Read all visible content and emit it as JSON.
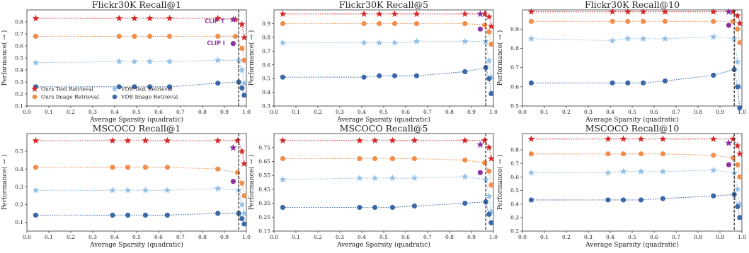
{
  "colors": {
    "ours_text": "#d62728",
    "ours_image": "#f28e4c",
    "vdr_text": "#92c0e6",
    "vdr_image": "#3b68a8",
    "clip": "#8e2fa3",
    "vline": "#222222"
  },
  "legend": {
    "entries": [
      {
        "label": "Ours Text Retrieval",
        "marker": "star",
        "color_key": "ours_text"
      },
      {
        "label": "VDR Text Retrieval",
        "marker": "star",
        "color_key": "vdr_text"
      },
      {
        "label": "Ours Image Retrieval",
        "marker": "circle",
        "color_key": "ours_image"
      },
      {
        "label": "VDR Image Retrieval",
        "marker": "circle",
        "color_key": "vdr_image"
      }
    ],
    "placement": "lower-left (first panel only)"
  },
  "chart_data": [
    {
      "type": "line",
      "title": "Flickr30K Recall@1",
      "xlabel": "Average Sparsity (quadratic)",
      "ylabel": "Performance( → )",
      "xlim": [
        0.0,
        1.0
      ],
      "ylim": [
        0.1,
        0.9
      ],
      "xticks": [
        "0.0",
        "0.1",
        "0.2",
        "0.3",
        "0.4",
        "0.5",
        "0.6",
        "0.7",
        "0.8",
        "0.9",
        "1.0"
      ],
      "yticks": [
        "0.1",
        "0.2",
        "0.3",
        "0.4",
        "0.5",
        "0.6",
        "0.7",
        "0.8"
      ],
      "vline": 0.965,
      "series": [
        {
          "key": "ours_text",
          "x": [
            0.04,
            0.42,
            0.49,
            0.56,
            0.65,
            0.87,
            0.95,
            0.98,
            0.99
          ],
          "y": [
            0.83,
            0.83,
            0.83,
            0.83,
            0.83,
            0.83,
            0.82,
            0.78,
            0.67
          ]
        },
        {
          "key": "ours_image",
          "x": [
            0.04,
            0.42,
            0.49,
            0.56,
            0.65,
            0.87,
            0.95,
            0.98,
            0.99
          ],
          "y": [
            0.68,
            0.68,
            0.68,
            0.68,
            0.68,
            0.68,
            0.68,
            0.58,
            0.48
          ]
        },
        {
          "key": "vdr_text",
          "x": [
            0.04,
            0.42,
            0.49,
            0.56,
            0.65,
            0.87,
            0.965,
            0.98,
            0.99
          ],
          "y": [
            0.46,
            0.47,
            0.47,
            0.47,
            0.47,
            0.48,
            0.48,
            0.4,
            0.29
          ]
        },
        {
          "key": "vdr_image",
          "x": [
            0.04,
            0.42,
            0.49,
            0.56,
            0.65,
            0.87,
            0.965,
            0.98,
            0.99
          ],
          "y": [
            0.26,
            0.26,
            0.26,
            0.26,
            0.26,
            0.29,
            0.3,
            0.25,
            0.19
          ]
        }
      ],
      "clip": {
        "text": {
          "x": 0.94,
          "y": 0.82
        },
        "image": {
          "x": 0.94,
          "y": 0.62
        }
      },
      "annotations": [
        {
          "text": "CLIP T",
          "x": 0.81,
          "y": 0.79
        },
        {
          "text": "CLIP I",
          "x": 0.82,
          "y": 0.61
        }
      ],
      "legend": true
    },
    {
      "type": "line",
      "title": "Flickr30K Recall@5",
      "xlabel": "Average Sparsity (quadratic)",
      "ylabel": "Performance( → )",
      "xlim": [
        0.0,
        1.0
      ],
      "ylim": [
        0.3,
        1.0
      ],
      "xticks": [
        "0.0",
        "0.1",
        "0.2",
        "0.3",
        "0.4",
        "0.5",
        "0.6",
        "0.7",
        "0.8",
        "0.9",
        "1.0"
      ],
      "yticks": [
        "0.3",
        "0.4",
        "0.5",
        "0.6",
        "0.7",
        "0.8",
        "0.9"
      ],
      "vline": 0.965,
      "series": [
        {
          "key": "ours_text",
          "x": [
            0.04,
            0.41,
            0.48,
            0.55,
            0.65,
            0.87,
            0.96,
            0.98,
            0.99
          ],
          "y": [
            0.97,
            0.97,
            0.97,
            0.97,
            0.97,
            0.97,
            0.97,
            0.95,
            0.88
          ]
        },
        {
          "key": "ours_image",
          "x": [
            0.04,
            0.41,
            0.48,
            0.55,
            0.65,
            0.87,
            0.96,
            0.98,
            0.99
          ],
          "y": [
            0.9,
            0.9,
            0.9,
            0.9,
            0.9,
            0.9,
            0.89,
            0.84,
            0.75
          ]
        },
        {
          "key": "vdr_text",
          "x": [
            0.04,
            0.41,
            0.48,
            0.55,
            0.65,
            0.87,
            0.965,
            0.98,
            0.99
          ],
          "y": [
            0.76,
            0.76,
            0.76,
            0.76,
            0.77,
            0.77,
            0.77,
            0.63,
            0.51
          ]
        },
        {
          "key": "vdr_image",
          "x": [
            0.04,
            0.41,
            0.48,
            0.55,
            0.65,
            0.87,
            0.965,
            0.98,
            0.99
          ],
          "y": [
            0.51,
            0.51,
            0.52,
            0.52,
            0.52,
            0.55,
            0.58,
            0.5,
            0.39
          ]
        }
      ],
      "clip": {
        "text": {
          "x": 0.94,
          "y": 0.97
        },
        "image": {
          "x": 0.94,
          "y": 0.86
        }
      },
      "annotations": [],
      "legend": false
    },
    {
      "type": "line",
      "title": "Flickr30K Recall@10",
      "xlabel": "Average Sparsity (quadratic)",
      "ylabel": "Performance( → )",
      "xlim": [
        0.0,
        1.0
      ],
      "ylim": [
        0.5,
        1.0
      ],
      "xticks": [
        "0.0",
        "0.1",
        "0.2",
        "0.3",
        "0.4",
        "0.5",
        "0.6",
        "0.7",
        "0.8",
        "0.9",
        "1.0"
      ],
      "yticks": [
        "0.5",
        "0.6",
        "0.7",
        "0.8",
        "0.9"
      ],
      "vline": 0.965,
      "series": [
        {
          "key": "ours_text",
          "x": [
            0.04,
            0.41,
            0.48,
            0.55,
            0.65,
            0.87,
            0.96,
            0.98,
            0.99
          ],
          "y": [
            0.99,
            0.99,
            0.99,
            0.99,
            0.99,
            0.99,
            0.99,
            0.97,
            0.93
          ]
        },
        {
          "key": "ours_image",
          "x": [
            0.04,
            0.41,
            0.48,
            0.55,
            0.65,
            0.87,
            0.96,
            0.98,
            0.99
          ],
          "y": [
            0.94,
            0.94,
            0.94,
            0.94,
            0.94,
            0.94,
            0.94,
            0.9,
            0.83
          ]
        },
        {
          "key": "vdr_text",
          "x": [
            0.04,
            0.41,
            0.48,
            0.55,
            0.65,
            0.87,
            0.965,
            0.98,
            0.99
          ],
          "y": [
            0.85,
            0.84,
            0.85,
            0.85,
            0.85,
            0.86,
            0.85,
            0.73,
            0.6
          ]
        },
        {
          "key": "vdr_image",
          "x": [
            0.04,
            0.41,
            0.48,
            0.55,
            0.65,
            0.87,
            0.965,
            0.98,
            0.99
          ],
          "y": [
            0.62,
            0.62,
            0.62,
            0.62,
            0.63,
            0.66,
            0.69,
            0.6,
            0.49
          ]
        }
      ],
      "clip": {
        "text": {
          "x": 0.94,
          "y": 0.99
        },
        "image": {
          "x": 0.94,
          "y": 0.92
        }
      },
      "annotations": [],
      "legend": false
    },
    {
      "type": "line",
      "title": "MSCOCO Recall@1",
      "xlabel": "Average Sparsity (quadratic)",
      "ylabel": "Performance( → )",
      "xlim": [
        0.0,
        1.0
      ],
      "ylim": [
        0.05,
        0.6
      ],
      "xticks": [
        "0.0",
        "0.1",
        "0.2",
        "0.3",
        "0.4",
        "0.5",
        "0.6",
        "0.7",
        "0.8",
        "0.9",
        "1.0"
      ],
      "yticks": [
        "0.1",
        "0.2",
        "0.3",
        "0.4",
        "0.5"
      ],
      "vline": 0.965,
      "series": [
        {
          "key": "ours_text",
          "x": [
            0.04,
            0.39,
            0.46,
            0.54,
            0.64,
            0.87,
            0.96,
            0.98,
            0.99
          ],
          "y": [
            0.56,
            0.56,
            0.56,
            0.56,
            0.56,
            0.56,
            0.56,
            0.5,
            0.43
          ]
        },
        {
          "key": "ours_image",
          "x": [
            0.04,
            0.39,
            0.46,
            0.54,
            0.64,
            0.87,
            0.96,
            0.98,
            0.99
          ],
          "y": [
            0.41,
            0.41,
            0.41,
            0.41,
            0.41,
            0.4,
            0.38,
            0.32,
            0.25
          ]
        },
        {
          "key": "vdr_text",
          "x": [
            0.04,
            0.39,
            0.46,
            0.54,
            0.64,
            0.87,
            0.965,
            0.98,
            0.99
          ],
          "y": [
            0.28,
            0.28,
            0.28,
            0.28,
            0.28,
            0.29,
            0.28,
            0.2,
            0.15
          ]
        },
        {
          "key": "vdr_image",
          "x": [
            0.04,
            0.39,
            0.46,
            0.54,
            0.64,
            0.87,
            0.965,
            0.98,
            0.99
          ],
          "y": [
            0.14,
            0.14,
            0.14,
            0.14,
            0.14,
            0.15,
            0.15,
            0.12,
            0.09
          ]
        }
      ],
      "clip": {
        "text": {
          "x": 0.94,
          "y": 0.52
        },
        "image": {
          "x": 0.94,
          "y": 0.33
        }
      },
      "annotations": [],
      "legend": false
    },
    {
      "type": "line",
      "title": "MSCOCO Recall@5",
      "xlabel": "Average Sparsity (quadratic)",
      "ylabel": "Performance( → )",
      "xlim": [
        0.0,
        1.0
      ],
      "ylim": [
        0.15,
        0.85
      ],
      "xticks": [
        "0.0",
        "0.1",
        "0.2",
        "0.3",
        "0.4",
        "0.5",
        "0.6",
        "0.7",
        "0.8",
        "0.9",
        "1.0"
      ],
      "yticks": [
        "0.15",
        "0.25",
        "0.35",
        "0.45",
        "0.55",
        "0.65",
        "0.75"
      ],
      "vline": 0.965,
      "series": [
        {
          "key": "ours_text",
          "x": [
            0.04,
            0.39,
            0.46,
            0.54,
            0.64,
            0.87,
            0.96,
            0.98,
            0.99
          ],
          "y": [
            0.8,
            0.8,
            0.8,
            0.8,
            0.8,
            0.8,
            0.8,
            0.75,
            0.67
          ]
        },
        {
          "key": "ours_image",
          "x": [
            0.04,
            0.39,
            0.46,
            0.54,
            0.64,
            0.87,
            0.96,
            0.98,
            0.99
          ],
          "y": [
            0.67,
            0.67,
            0.67,
            0.67,
            0.67,
            0.66,
            0.64,
            0.58,
            0.48
          ]
        },
        {
          "key": "vdr_text",
          "x": [
            0.04,
            0.39,
            0.46,
            0.54,
            0.64,
            0.87,
            0.965,
            0.98,
            0.99
          ],
          "y": [
            0.52,
            0.53,
            0.53,
            0.53,
            0.53,
            0.54,
            0.52,
            0.4,
            0.29
          ]
        },
        {
          "key": "vdr_image",
          "x": [
            0.04,
            0.39,
            0.46,
            0.54,
            0.64,
            0.87,
            0.965,
            0.98,
            0.99
          ],
          "y": [
            0.32,
            0.32,
            0.32,
            0.32,
            0.33,
            0.35,
            0.36,
            0.27,
            0.21
          ]
        }
      ],
      "clip": {
        "text": {
          "x": 0.94,
          "y": 0.77
        },
        "image": {
          "x": 0.94,
          "y": 0.57
        }
      },
      "annotations": [],
      "legend": false
    },
    {
      "type": "line",
      "title": "MSCOCO Recall@10",
      "xlabel": "Average Sparsity (quadratic)",
      "ylabel": "Performance( → )",
      "xlim": [
        0.0,
        1.0
      ],
      "ylim": [
        0.2,
        0.92
      ],
      "xticks": [
        "0.0",
        "0.1",
        "0.2",
        "0.3",
        "0.4",
        "0.5",
        "0.6",
        "0.7",
        "0.8",
        "0.9",
        "1.0"
      ],
      "yticks": [
        "0.2",
        "0.3",
        "0.4",
        "0.5",
        "0.6",
        "0.7",
        "0.8"
      ],
      "vline": 0.965,
      "series": [
        {
          "key": "ours_text",
          "x": [
            0.04,
            0.39,
            0.46,
            0.54,
            0.64,
            0.87,
            0.96,
            0.98,
            0.99
          ],
          "y": [
            0.88,
            0.88,
            0.88,
            0.88,
            0.88,
            0.88,
            0.88,
            0.83,
            0.77
          ]
        },
        {
          "key": "ours_image",
          "x": [
            0.04,
            0.39,
            0.46,
            0.54,
            0.64,
            0.87,
            0.96,
            0.98,
            0.99
          ],
          "y": [
            0.77,
            0.77,
            0.77,
            0.77,
            0.77,
            0.76,
            0.74,
            0.69,
            0.6
          ]
        },
        {
          "key": "vdr_text",
          "x": [
            0.04,
            0.39,
            0.46,
            0.54,
            0.64,
            0.87,
            0.965,
            0.98,
            0.99
          ],
          "y": [
            0.63,
            0.63,
            0.64,
            0.64,
            0.64,
            0.65,
            0.63,
            0.51,
            0.4
          ]
        },
        {
          "key": "vdr_image",
          "x": [
            0.04,
            0.39,
            0.46,
            0.54,
            0.64,
            0.87,
            0.965,
            0.98,
            0.99
          ],
          "y": [
            0.43,
            0.43,
            0.43,
            0.43,
            0.44,
            0.46,
            0.47,
            0.38,
            0.3
          ]
        }
      ],
      "clip": {
        "text": {
          "x": 0.94,
          "y": 0.85
        },
        "image": {
          "x": 0.94,
          "y": 0.69
        }
      },
      "annotations": [],
      "legend": false
    }
  ]
}
